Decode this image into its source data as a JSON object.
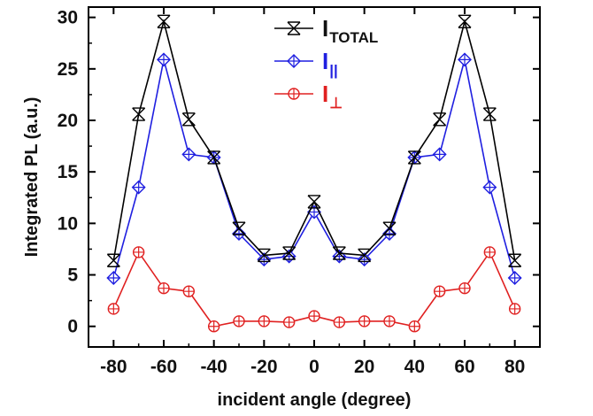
{
  "chart_data": {
    "type": "line",
    "title": "",
    "xlabel": "incident angle (degree)",
    "ylabel": "Integrated PL (a.u.)",
    "xlim": [
      -90,
      90
    ],
    "ylim": [
      -2,
      31
    ],
    "xticks": [
      -80,
      -60,
      -40,
      -20,
      0,
      20,
      40,
      60,
      80
    ],
    "xtick_labels": [
      "-80",
      "-60",
      "-40",
      "-20",
      "0",
      "20",
      "40",
      "60",
      "80"
    ],
    "yticks": [
      0,
      5,
      10,
      15,
      20,
      25,
      30
    ],
    "ytick_labels": [
      "0",
      "5",
      "10",
      "15",
      "20",
      "25",
      "30"
    ],
    "x": [
      -80,
      -70,
      -60,
      -50,
      -40,
      -30,
      -20,
      -10,
      0,
      10,
      20,
      30,
      40,
      50,
      60,
      70,
      80
    ],
    "legend_position": "top-center",
    "series": [
      {
        "name": "I_TOTAL",
        "legend_main": "I",
        "legend_sub": "TOTAL",
        "color": "#000000",
        "marker": "crossed-x",
        "values": [
          6.4,
          20.6,
          29.6,
          20.1,
          16.4,
          9.5,
          6.9,
          7.1,
          12.1,
          7.1,
          6.9,
          9.5,
          16.4,
          20.1,
          29.6,
          20.6,
          6.4
        ]
      },
      {
        "name": "I_parallel",
        "legend_main": "I",
        "legend_sub": "||",
        "color": "#1f1fe0",
        "marker": "diamond-plus",
        "values": [
          4.7,
          13.5,
          25.9,
          16.7,
          16.4,
          9.0,
          6.5,
          6.8,
          11.1,
          6.8,
          6.5,
          9.0,
          16.4,
          16.7,
          25.9,
          13.5,
          4.7
        ]
      },
      {
        "name": "I_perpendicular",
        "legend_main": "I",
        "legend_sub": "⊥",
        "color": "#e02020",
        "marker": "circle-plus",
        "values": [
          1.7,
          7.2,
          3.7,
          3.4,
          0.0,
          0.5,
          0.5,
          0.4,
          1.0,
          0.4,
          0.5,
          0.5,
          0.0,
          3.4,
          3.7,
          7.2,
          1.7
        ]
      }
    ]
  }
}
